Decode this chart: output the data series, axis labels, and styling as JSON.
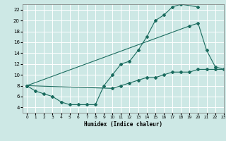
{
  "bg_color": "#cde8e5",
  "line_color": "#1a6b5e",
  "grid_color": "#ffffff",
  "xlabel": "Humidex (Indice chaleur)",
  "ylim": [
    3,
    23
  ],
  "xlim": [
    -0.5,
    23
  ],
  "yticks": [
    4,
    6,
    8,
    10,
    12,
    14,
    16,
    18,
    20,
    22
  ],
  "xticks": [
    0,
    1,
    2,
    3,
    4,
    5,
    6,
    7,
    8,
    9,
    10,
    11,
    12,
    13,
    14,
    15,
    16,
    17,
    18,
    19,
    20,
    21,
    22,
    23
  ],
  "line1_x": [
    0,
    1,
    2,
    3,
    4,
    5,
    6,
    7,
    8,
    9,
    10,
    11,
    12,
    13,
    14,
    15,
    16,
    17,
    18,
    20
  ],
  "line1_y": [
    8.0,
    7.0,
    6.5,
    6.0,
    5.0,
    4.5,
    4.5,
    4.5,
    4.5,
    8.0,
    10.0,
    12.0,
    12.5,
    14.5,
    17.0,
    20.0,
    21.0,
    22.5,
    23.0,
    22.5
  ],
  "line2_x": [
    0,
    19,
    20,
    21,
    22,
    23
  ],
  "line2_y": [
    8.0,
    19.0,
    19.5,
    14.5,
    11.5,
    11.0
  ],
  "line3_x": [
    0,
    10,
    11,
    12,
    13,
    14,
    15,
    16,
    17,
    18,
    19,
    20,
    21,
    22,
    23
  ],
  "line3_y": [
    8.0,
    7.5,
    8.0,
    8.5,
    9.0,
    9.5,
    9.5,
    10.0,
    10.5,
    10.5,
    10.5,
    11.0,
    11.0,
    11.0,
    11.0
  ]
}
